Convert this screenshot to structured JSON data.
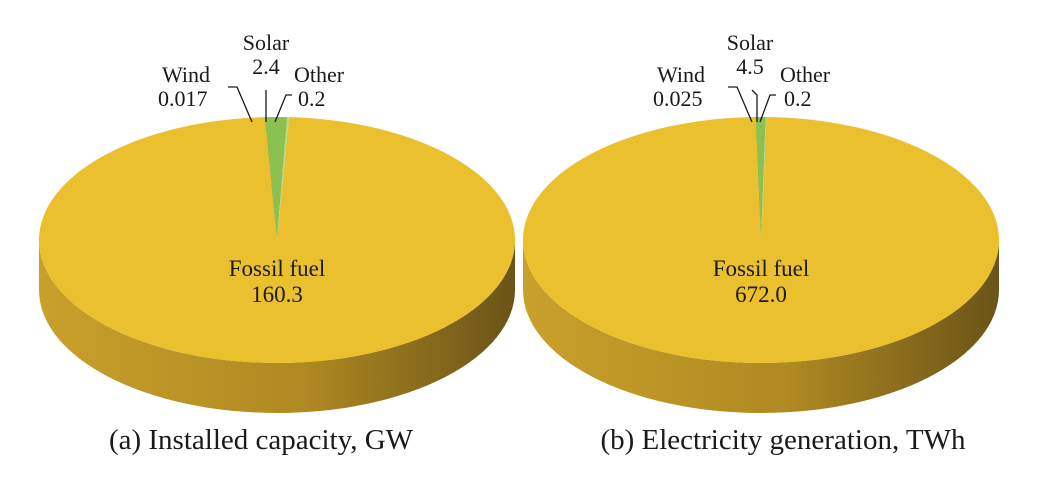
{
  "chart_data": [
    {
      "type": "pie",
      "title": "(a) Installed capacity, GW",
      "slices": [
        {
          "label": "Fossil fuel",
          "value": 160.3,
          "value_text": "160.3",
          "color": "#EAC02E"
        },
        {
          "label": "Wind",
          "value": 0.017,
          "value_text": "0.017",
          "color": "#3E8E3A"
        },
        {
          "label": "Solar",
          "value": 2.4,
          "value_text": "2.4",
          "color": "#8CC152"
        },
        {
          "label": "Other",
          "value": 0.2,
          "value_text": "0.2",
          "color": "#B5D98A"
        }
      ],
      "style": "3d-tilted"
    },
    {
      "type": "pie",
      "title": "(b) Electricity generation, TWh",
      "slices": [
        {
          "label": "Fossil fuel",
          "value": 672.0,
          "value_text": "672.0",
          "color": "#EAC02E"
        },
        {
          "label": "Wind",
          "value": 0.025,
          "value_text": "0.025",
          "color": "#3E8E3A"
        },
        {
          "label": "Solar",
          "value": 4.5,
          "value_text": "4.5",
          "color": "#8CC152"
        },
        {
          "label": "Other",
          "value": 0.2,
          "value_text": "0.2",
          "color": "#B5D98A"
        }
      ],
      "style": "3d-tilted"
    }
  ],
  "colors": {
    "fossil_top": "#EAC02E",
    "fossil_side_light": "#C9A02A",
    "fossil_side_dark": "#6B5418",
    "leader_line": "#1a1a1a"
  }
}
